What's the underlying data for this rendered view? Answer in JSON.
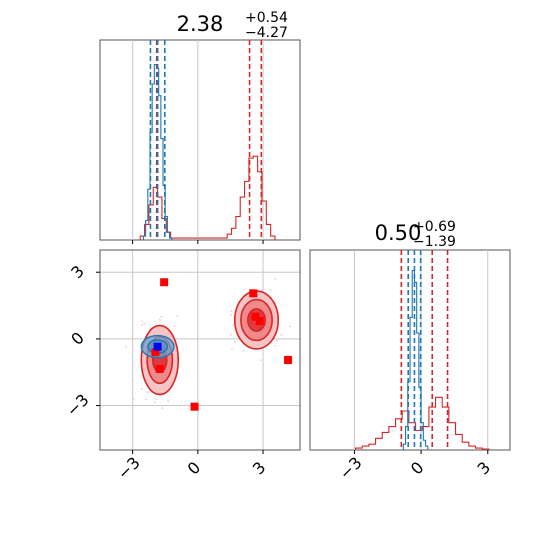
{
  "colors": {
    "red": "#d62728",
    "red_fill_outer": "#f6c4c4",
    "red_fill_mid": "#ee8a8a",
    "red_fill_inner": "#e03a3a",
    "blue": "#1f77b4",
    "blue_fill": "#6f9fc9",
    "marker_red": "#ff0000",
    "marker_blue": "#0000ff",
    "grid": "#c8c8c8",
    "axis": "#555555"
  },
  "chart_data": {
    "type": "corner",
    "params": [
      {
        "title_value": "2.38",
        "title_plus": "+0.54",
        "title_minus": "−4.27",
        "range": [
          -4.5,
          4.7
        ],
        "ticks": [
          -3,
          0,
          3
        ],
        "tick_labels": [
          "−3",
          "0",
          "3"
        ],
        "quantiles_red": [
          -1.89,
          2.38,
          2.92
        ],
        "quantiles_blue": [
          -2.18,
          -1.85,
          -1.52
        ],
        "hist_red": {
          "x": [
            -2.55,
            -2.35,
            -2.15,
            -1.95,
            -1.75,
            -1.55,
            -1.35,
            -1.15,
            1.25,
            1.45,
            1.65,
            1.85,
            2.05,
            2.25,
            2.45,
            2.65,
            2.85,
            3.05,
            3.25,
            3.45
          ],
          "y": [
            0.02,
            0.08,
            0.18,
            0.27,
            0.22,
            0.11,
            0.04,
            0.01,
            0.01,
            0.03,
            0.06,
            0.12,
            0.22,
            0.3,
            0.42,
            0.43,
            0.35,
            0.2,
            0.08,
            0.02
          ]
        },
        "hist_blue": {
          "x": [
            -2.45,
            -2.35,
            -2.25,
            -2.15,
            -2.05,
            -1.95,
            -1.85,
            -1.75,
            -1.65,
            -1.55,
            -1.45,
            -1.35,
            -1.25
          ],
          "y": [
            0.02,
            0.1,
            0.26,
            0.55,
            0.8,
            0.9,
            0.88,
            0.74,
            0.52,
            0.28,
            0.12,
            0.04,
            0.01
          ]
        }
      },
      {
        "title_value": "0.50",
        "title_plus": "+0.69",
        "title_minus": "−1.39",
        "range": [
          -5.0,
          4.0
        ],
        "ticks": [
          -3,
          0,
          3
        ],
        "tick_labels": [
          "−3",
          "0",
          "3"
        ],
        "quantiles_red": [
          -0.89,
          0.5,
          1.19
        ],
        "quantiles_blue": [
          -0.58,
          -0.3,
          -0.02
        ],
        "hist_red": {
          "x": [
            -2.8,
            -2.5,
            -2.2,
            -1.9,
            -1.6,
            -1.3,
            -1.0,
            -0.7,
            -0.4,
            -0.1,
            0.2,
            0.5,
            0.8,
            1.1,
            1.4,
            1.7,
            2.0,
            2.3,
            2.6,
            2.9
          ],
          "y": [
            0.01,
            0.02,
            0.03,
            0.06,
            0.09,
            0.12,
            0.16,
            0.2,
            0.14,
            0.1,
            0.12,
            0.22,
            0.27,
            0.22,
            0.14,
            0.08,
            0.04,
            0.02,
            0.01,
            0.005
          ]
        },
        "hist_blue": {
          "x": [
            -0.75,
            -0.65,
            -0.55,
            -0.45,
            -0.35,
            -0.25,
            -0.15,
            -0.05,
            0.05,
            0.15,
            0.25
          ],
          "y": [
            0.03,
            0.12,
            0.35,
            0.68,
            0.92,
            0.86,
            0.6,
            0.32,
            0.14,
            0.05,
            0.02
          ]
        }
      }
    ],
    "joint": {
      "red_clusters": [
        {
          "cx": -1.75,
          "cy": -0.95,
          "rx": [
            0.85,
            0.58,
            0.32
          ],
          "ry": [
            1.55,
            1.05,
            0.55
          ]
        },
        {
          "cx": 2.7,
          "cy": 0.85,
          "rx": [
            1.0,
            0.72,
            0.4
          ],
          "ry": [
            1.3,
            0.92,
            0.5
          ]
        }
      ],
      "blue_cluster": {
        "cx": -1.85,
        "cy": -0.35,
        "rx": [
          0.75,
          0.45
        ],
        "ry": [
          0.5,
          0.3
        ]
      },
      "red_markers": [
        [
          -1.55,
          2.55
        ],
        [
          2.55,
          2.05
        ],
        [
          2.65,
          1.0
        ],
        [
          2.85,
          0.8
        ],
        [
          4.15,
          -0.95
        ],
        [
          -0.15,
          -3.05
        ],
        [
          -1.95,
          -0.6
        ],
        [
          -1.75,
          -1.35
        ]
      ],
      "blue_marker": [
        -1.85,
        -0.35
      ]
    }
  }
}
